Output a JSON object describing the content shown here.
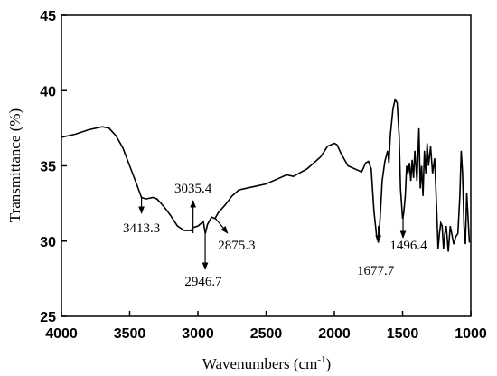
{
  "chart_data": {
    "type": "line",
    "xlabel": "Wavenumbers (cm",
    "xlabel_sup": "-1",
    "xlabel_end": ")",
    "ylabel": "Transmittance (%)",
    "xlim": [
      4000,
      1000
    ],
    "xticks": [
      4000,
      3500,
      3000,
      2500,
      2000,
      1500,
      1000
    ],
    "ylim": [
      25,
      45
    ],
    "yticks": [
      25,
      30,
      35,
      40,
      45
    ],
    "color": "#000000",
    "x": [
      4000,
      3900,
      3800,
      3700,
      3650,
      3600,
      3550,
      3500,
      3450,
      3413,
      3380,
      3330,
      3300,
      3250,
      3200,
      3150,
      3100,
      3050,
      3035,
      3000,
      2960,
      2946,
      2930,
      2900,
      2875,
      2850,
      2800,
      2750,
      2700,
      2600,
      2500,
      2400,
      2350,
      2300,
      2200,
      2100,
      2050,
      2000,
      1980,
      1950,
      1900,
      1850,
      1800,
      1770,
      1750,
      1730,
      1710,
      1690,
      1677.7,
      1665,
      1650,
      1630,
      1610,
      1600,
      1590,
      1570,
      1555,
      1540,
      1525,
      1515,
      1500,
      1496,
      1490,
      1480,
      1470,
      1460,
      1450,
      1440,
      1430,
      1420,
      1410,
      1395,
      1380,
      1370,
      1360,
      1350,
      1340,
      1330,
      1320,
      1310,
      1295,
      1280,
      1265,
      1250,
      1240,
      1230,
      1220,
      1210,
      1200,
      1190,
      1180,
      1165,
      1150,
      1140,
      1125,
      1110,
      1095,
      1080,
      1070,
      1060,
      1050,
      1040,
      1030,
      1020,
      1010
    ],
    "values": [
      36.9,
      37.1,
      37.4,
      37.6,
      37.5,
      37.0,
      36.2,
      35.0,
      33.8,
      32.9,
      32.8,
      32.9,
      32.8,
      32.3,
      31.7,
      31.0,
      30.7,
      30.7,
      30.9,
      31.0,
      31.3,
      30.5,
      31.1,
      31.6,
      31.5,
      31.9,
      32.4,
      33.0,
      33.4,
      33.6,
      33.8,
      34.2,
      34.4,
      34.3,
      34.8,
      35.6,
      36.3,
      36.5,
      36.4,
      35.8,
      35.0,
      34.8,
      34.6,
      35.2,
      35.3,
      34.8,
      32.0,
      30.3,
      29.9,
      31.5,
      34.0,
      35.3,
      36.0,
      35.2,
      37.0,
      38.8,
      39.4,
      39.2,
      37.0,
      33.5,
      31.5,
      31.6,
      32.0,
      33.0,
      35.0,
      34.5,
      35.2,
      34.0,
      35.4,
      34.2,
      36.0,
      34.0,
      37.5,
      33.5,
      35.0,
      33.0,
      36.0,
      34.5,
      36.5,
      35.0,
      36.3,
      34.5,
      35.5,
      32.0,
      29.5,
      30.5,
      31.2,
      31.0,
      29.5,
      30.5,
      31.0,
      29.3,
      31.0,
      30.5,
      29.8,
      30.3,
      30.5,
      33.0,
      36.0,
      34.5,
      31.0,
      29.8,
      33.2,
      31.5,
      29.9
    ],
    "annotations": [
      3413.3,
      3035.4,
      2875.3,
      2946.7,
      1677.7,
      1496.4
    ]
  }
}
